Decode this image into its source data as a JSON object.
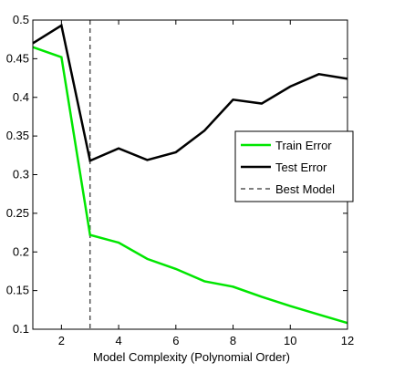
{
  "chart_data": {
    "type": "line",
    "title": "",
    "xlabel": "Model Complexity (Polynomial Order)",
    "ylabel": "",
    "xlim": [
      1,
      12
    ],
    "ylim": [
      0.1,
      0.5
    ],
    "xticks": [
      2,
      4,
      6,
      8,
      10,
      12
    ],
    "yticks": [
      0.1,
      0.15,
      0.2,
      0.25,
      0.3,
      0.35,
      0.4,
      0.45,
      0.5
    ],
    "ytick_labels": [
      "0.1",
      "0.15",
      "0.2",
      "0.25",
      "0.3",
      "0.35",
      "0.4",
      "0.45",
      "0.5"
    ],
    "grid": false,
    "legend_position": "right",
    "x": [
      1,
      2,
      3,
      4,
      5,
      6,
      7,
      8,
      9,
      10,
      11,
      12
    ],
    "series": [
      {
        "name": "Train Error",
        "color": "#00e600",
        "style": "solid",
        "values": [
          0.465,
          0.452,
          0.222,
          0.212,
          0.191,
          0.178,
          0.162,
          0.155,
          0.142,
          0.13,
          0.119,
          0.108
        ]
      },
      {
        "name": "Test Error",
        "color": "#000000",
        "style": "solid",
        "values": [
          0.47,
          0.493,
          0.318,
          0.334,
          0.319,
          0.329,
          0.357,
          0.397,
          0.392,
          0.414,
          0.43,
          0.424
        ]
      }
    ],
    "vlines": [
      {
        "name": "Best Model",
        "x": 3,
        "color": "#555555",
        "style": "dashed"
      }
    ]
  }
}
